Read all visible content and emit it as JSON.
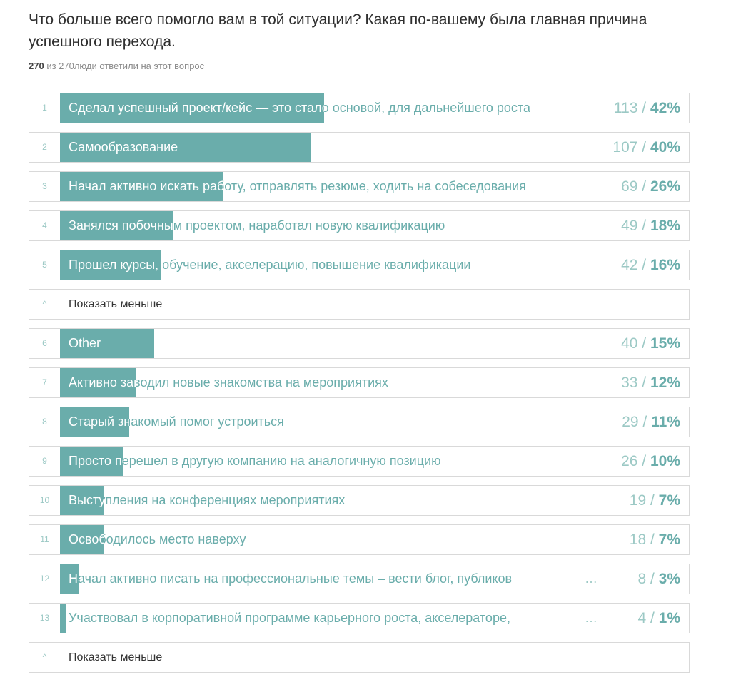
{
  "question": "Что больше всего помогло вам в той ситуации? Какая по-вашему была главная причина успешного перехода.",
  "responses": {
    "answered": "270",
    "text": " из 270люди ответили на этот вопрос"
  },
  "toggle_label": "Показать меньше",
  "chart_data": {
    "type": "bar",
    "orientation": "horizontal",
    "max_percent": 100,
    "rows": [
      {
        "index": "1",
        "label": "Сделал успешный проект/кейс — это стало основой, для дальнейшего роста",
        "count": "113",
        "percent": 42,
        "truncated": false
      },
      {
        "index": "2",
        "label": "Самообразование",
        "count": "107",
        "percent": 40,
        "truncated": false
      },
      {
        "index": "3",
        "label": "Начал активно искать работу, отправлять резюме, ходить на собеседования",
        "count": "69",
        "percent": 26,
        "truncated": false
      },
      {
        "index": "4",
        "label": "Занялся побочным проектом, наработал новую квалификацию",
        "count": "49",
        "percent": 18,
        "truncated": false
      },
      {
        "index": "5",
        "label": "Прошел курсы, обучение, акселерацию, повышение квалификации",
        "count": "42",
        "percent": 16,
        "truncated": false
      },
      {
        "toggle": true
      },
      {
        "index": "6",
        "label": "Other",
        "count": "40",
        "percent": 15,
        "truncated": false
      },
      {
        "index": "7",
        "label": "Активно заводил новые знакомства на мероприятиях",
        "count": "33",
        "percent": 12,
        "truncated": false
      },
      {
        "index": "8",
        "label": "Старый знакомый помог устроиться",
        "count": "29",
        "percent": 11,
        "truncated": false
      },
      {
        "index": "9",
        "label": "Просто перешел в другую компанию на аналогичную позицию",
        "count": "26",
        "percent": 10,
        "truncated": false
      },
      {
        "index": "10",
        "label": "Выступления на конференциях мероприятиях",
        "count": "19",
        "percent": 7,
        "truncated": false
      },
      {
        "index": "11",
        "label": "Освободилось место наверху",
        "count": "18",
        "percent": 7,
        "truncated": false
      },
      {
        "index": "12",
        "label": "Начал активно писать на профессиональные темы – вести блог, публиков",
        "count": "8",
        "percent": 3,
        "truncated": true
      },
      {
        "index": "13",
        "label": "Участвовал в корпоративной программе карьерного роста, акселераторе,",
        "count": "4",
        "percent": 1,
        "truncated": true
      },
      {
        "toggle": true
      }
    ]
  },
  "colors": {
    "bar": "#6aadab",
    "muted": "#9cc9c5"
  },
  "ellipsis": "…",
  "separator": " / ",
  "percent_suffix": "%",
  "toggle_icon": "^"
}
